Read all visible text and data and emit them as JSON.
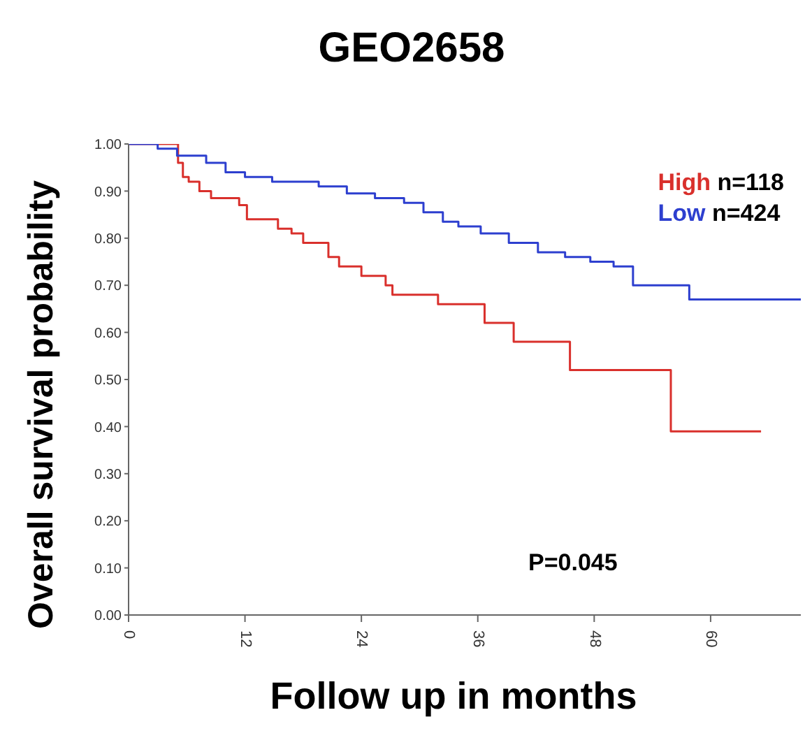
{
  "chart_data": {
    "type": "step",
    "title": "GEO2658",
    "xlabel": "Follow up in months",
    "ylabel": "Overall survival probability",
    "xlim": [
      0,
      69.3
    ],
    "xticks": [
      0,
      12,
      24,
      36,
      48,
      60
    ],
    "ylim": [
      0,
      1
    ],
    "yticks": [
      {
        "value": 0,
        "label": "0.00"
      },
      {
        "value": 0.1,
        "label": "0.10"
      },
      {
        "value": 0.2,
        "label": "0.20"
      },
      {
        "value": 0.3,
        "label": "0.30"
      },
      {
        "value": 0.4,
        "label": "0.40"
      },
      {
        "value": 0.5,
        "label": "0.50"
      },
      {
        "value": 0.6,
        "label": "0.60"
      },
      {
        "value": 0.7,
        "label": "0.70"
      },
      {
        "value": 0.8,
        "label": "0.80"
      },
      {
        "value": 0.9,
        "label": "0.90"
      },
      {
        "value": 1,
        "label": "1.00"
      }
    ],
    "series": [
      {
        "name": "High",
        "color": "#d9302c",
        "x": [
          0,
          5.1,
          5.6,
          6.2,
          7.3,
          8.5,
          11.4,
          12.2,
          15.4,
          16.8,
          18,
          20.6,
          21.7,
          24,
          26.5,
          27.2,
          31.9,
          36.7,
          39.7,
          45.5,
          55.9,
          65.2
        ],
        "values": [
          1,
          0.96,
          0.93,
          0.92,
          0.9,
          0.885,
          0.87,
          0.84,
          0.82,
          0.81,
          0.79,
          0.76,
          0.74,
          0.72,
          0.7,
          0.68,
          0.66,
          0.62,
          0.58,
          0.52,
          0.39,
          0.39
        ]
      },
      {
        "name": "Low",
        "color": "#2d3fcf",
        "x": [
          0,
          3,
          5,
          8,
          10,
          12,
          14.8,
          19.6,
          22.5,
          25.4,
          28.4,
          30.4,
          32.4,
          34,
          36.3,
          39.2,
          42.2,
          45,
          47.6,
          50,
          52,
          57.8,
          69.3
        ],
        "values": [
          1,
          0.99,
          0.975,
          0.96,
          0.94,
          0.93,
          0.92,
          0.91,
          0.895,
          0.885,
          0.875,
          0.855,
          0.835,
          0.825,
          0.81,
          0.79,
          0.77,
          0.76,
          0.75,
          0.74,
          0.7,
          0.67,
          0.67
        ]
      }
    ],
    "annotations": [
      "n=118",
      "n=424",
      "P=0.045"
    ],
    "legend": "top right"
  }
}
